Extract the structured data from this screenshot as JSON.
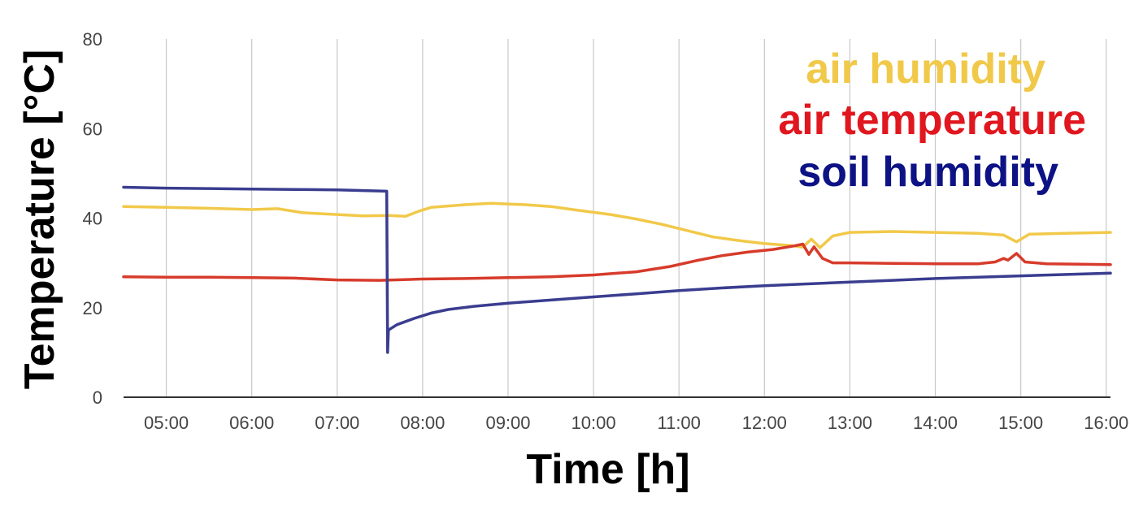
{
  "chart_data": {
    "type": "line",
    "xlabel": "Time [h]",
    "ylabel": "Temperature [°C]",
    "xlim": [
      4.5,
      16.05
    ],
    "ylim": [
      0,
      80
    ],
    "y_ticks": [
      "0",
      "20",
      "40",
      "60",
      "80"
    ],
    "x_ticks": [
      "05:00",
      "06:00",
      "07:00",
      "08:00",
      "09:00",
      "10:00",
      "11:00",
      "12:00",
      "13:00",
      "14:00",
      "15:00",
      "16:00"
    ],
    "x_tick_values": [
      5,
      6,
      7,
      8,
      9,
      10,
      11,
      12,
      13,
      14,
      15,
      16
    ],
    "grid": "vertical",
    "legend_position": "top-right",
    "series": [
      {
        "name": "air humidity",
        "color": "#F1C94A",
        "points": [
          [
            4.5,
            42.6
          ],
          [
            5,
            42.4
          ],
          [
            5.5,
            42.2
          ],
          [
            6,
            41.9
          ],
          [
            6.3,
            42.1
          ],
          [
            6.6,
            41.2
          ],
          [
            7,
            40.8
          ],
          [
            7.3,
            40.5
          ],
          [
            7.6,
            40.6
          ],
          [
            7.8,
            40.4
          ],
          [
            7.95,
            41.5
          ],
          [
            8.1,
            42.4
          ],
          [
            8.5,
            43.0
          ],
          [
            8.8,
            43.3
          ],
          [
            9.2,
            43.0
          ],
          [
            9.5,
            42.6
          ],
          [
            9.8,
            41.8
          ],
          [
            10.2,
            40.8
          ],
          [
            10.5,
            39.8
          ],
          [
            10.8,
            38.6
          ],
          [
            11.1,
            37.2
          ],
          [
            11.4,
            35.8
          ],
          [
            11.7,
            35.0
          ],
          [
            12.0,
            34.3
          ],
          [
            12.3,
            33.9
          ],
          [
            12.45,
            33.5
          ],
          [
            12.55,
            35.3
          ],
          [
            12.65,
            33.4
          ],
          [
            12.8,
            36.0
          ],
          [
            13.0,
            36.8
          ],
          [
            13.5,
            37.0
          ],
          [
            14.0,
            36.8
          ],
          [
            14.5,
            36.6
          ],
          [
            14.8,
            36.2
          ],
          [
            14.95,
            34.7
          ],
          [
            15.1,
            36.4
          ],
          [
            15.5,
            36.6
          ],
          [
            16.05,
            36.8
          ]
        ]
      },
      {
        "name": "air temperature",
        "color": "#D73B2B",
        "points": [
          [
            4.5,
            26.9
          ],
          [
            5,
            26.8
          ],
          [
            5.5,
            26.8
          ],
          [
            6,
            26.7
          ],
          [
            6.5,
            26.6
          ],
          [
            7,
            26.2
          ],
          [
            7.5,
            26.1
          ],
          [
            8.0,
            26.4
          ],
          [
            8.5,
            26.5
          ],
          [
            9.0,
            26.7
          ],
          [
            9.5,
            26.9
          ],
          [
            10.0,
            27.3
          ],
          [
            10.5,
            28.0
          ],
          [
            10.9,
            29.2
          ],
          [
            11.2,
            30.5
          ],
          [
            11.5,
            31.6
          ],
          [
            11.8,
            32.4
          ],
          [
            12.1,
            33.0
          ],
          [
            12.35,
            33.8
          ],
          [
            12.45,
            34.2
          ],
          [
            12.52,
            31.9
          ],
          [
            12.58,
            33.6
          ],
          [
            12.68,
            31.0
          ],
          [
            12.8,
            30.0
          ],
          [
            13.0,
            30.0
          ],
          [
            13.5,
            29.9
          ],
          [
            14.0,
            29.8
          ],
          [
            14.5,
            29.8
          ],
          [
            14.7,
            30.2
          ],
          [
            14.8,
            31.0
          ],
          [
            14.85,
            30.6
          ],
          [
            14.95,
            32.1
          ],
          [
            15.05,
            30.2
          ],
          [
            15.3,
            29.8
          ],
          [
            15.7,
            29.7
          ],
          [
            16.05,
            29.6
          ]
        ]
      },
      {
        "name": "soil humidity",
        "color": "#3A3D8F",
        "points": [
          [
            4.5,
            46.9
          ],
          [
            5,
            46.7
          ],
          [
            5.5,
            46.6
          ],
          [
            6,
            46.5
          ],
          [
            6.5,
            46.4
          ],
          [
            7,
            46.3
          ],
          [
            7.4,
            46.1
          ],
          [
            7.58,
            46.0
          ],
          [
            7.59,
            10.0
          ],
          [
            7.6,
            15.0
          ],
          [
            7.7,
            16.2
          ],
          [
            7.9,
            17.6
          ],
          [
            8.1,
            18.8
          ],
          [
            8.3,
            19.6
          ],
          [
            8.6,
            20.3
          ],
          [
            9.0,
            21.0
          ],
          [
            9.5,
            21.7
          ],
          [
            10.0,
            22.4
          ],
          [
            10.5,
            23.1
          ],
          [
            11.0,
            23.8
          ],
          [
            11.5,
            24.4
          ],
          [
            12.0,
            24.9
          ],
          [
            12.5,
            25.3
          ],
          [
            13.0,
            25.7
          ],
          [
            13.5,
            26.1
          ],
          [
            14.0,
            26.5
          ],
          [
            14.5,
            26.8
          ],
          [
            15.0,
            27.1
          ],
          [
            15.5,
            27.4
          ],
          [
            16.05,
            27.7
          ]
        ]
      }
    ]
  }
}
